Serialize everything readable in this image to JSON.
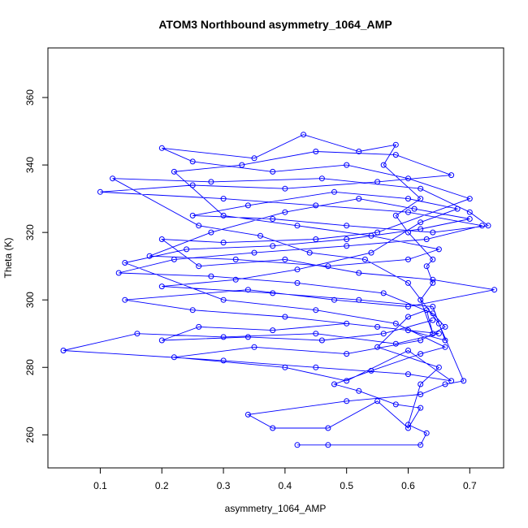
{
  "chart_data": {
    "type": "scatter",
    "title": "ATOM3 Northbound asymmetry_1064_AMP",
    "xlabel": "asymmetry_1064_AMP",
    "ylabel": "Theta (K)",
    "xlim": [
      0.015,
      0.755
    ],
    "ylim": [
      250.2,
      374.7
    ],
    "xticks": [
      "0.1",
      "0.2",
      "0.3",
      "0.4",
      "0.5",
      "0.6",
      "0.7"
    ],
    "yticks": [
      "260",
      "280",
      "300",
      "320",
      "340",
      "360"
    ],
    "grid": false,
    "marker": "open-circle",
    "connected": true,
    "series": [
      {
        "color": "#0000ff",
        "points": [
          [
            0.42,
            257.0
          ],
          [
            0.47,
            257.0
          ],
          [
            0.62,
            257.0
          ],
          [
            0.63,
            260.5
          ],
          [
            0.6,
            263.0
          ],
          [
            0.62,
            275.0
          ],
          [
            0.65,
            280.0
          ],
          [
            0.55,
            286.0
          ],
          [
            0.6,
            295.0
          ],
          [
            0.63,
            297.0
          ],
          [
            0.64,
            290.0
          ],
          [
            0.62,
            300.0
          ],
          [
            0.64,
            305.0
          ],
          [
            0.63,
            310.0
          ],
          [
            0.64,
            312.0
          ],
          [
            0.6,
            320.0
          ],
          [
            0.58,
            325.0
          ],
          [
            0.62,
            330.0
          ],
          [
            0.56,
            340.0
          ],
          [
            0.58,
            346.0
          ],
          [
            0.52,
            344.0
          ],
          [
            0.43,
            349.0
          ],
          [
            0.35,
            342.0
          ],
          [
            0.2,
            345.0
          ],
          [
            0.25,
            341.0
          ],
          [
            0.38,
            338.0
          ],
          [
            0.5,
            340.0
          ],
          [
            0.6,
            336.0
          ],
          [
            0.7,
            330.0
          ],
          [
            0.55,
            320.0
          ],
          [
            0.45,
            318.0
          ],
          [
            0.3,
            317.0
          ],
          [
            0.2,
            318.0
          ],
          [
            0.26,
            310.0
          ],
          [
            0.4,
            312.0
          ],
          [
            0.52,
            308.0
          ],
          [
            0.64,
            306.0
          ],
          [
            0.74,
            303.0
          ],
          [
            0.6,
            298.0
          ],
          [
            0.48,
            300.0
          ],
          [
            0.34,
            303.0
          ],
          [
            0.14,
            300.0
          ],
          [
            0.25,
            297.0
          ],
          [
            0.4,
            295.0
          ],
          [
            0.55,
            292.0
          ],
          [
            0.65,
            290.0
          ],
          [
            0.58,
            287.0
          ],
          [
            0.45,
            290.0
          ],
          [
            0.3,
            289.0
          ],
          [
            0.16,
            290.0
          ],
          [
            0.04,
            285.0
          ],
          [
            0.3,
            282.0
          ],
          [
            0.45,
            280.0
          ],
          [
            0.6,
            278.0
          ],
          [
            0.67,
            276.0
          ],
          [
            0.6,
            285.0
          ],
          [
            0.5,
            276.0
          ],
          [
            0.4,
            280.0
          ],
          [
            0.22,
            283.0
          ],
          [
            0.35,
            286.0
          ],
          [
            0.5,
            284.0
          ],
          [
            0.62,
            288.0
          ],
          [
            0.66,
            292.0
          ],
          [
            0.64,
            296.0
          ],
          [
            0.56,
            302.0
          ],
          [
            0.42,
            305.0
          ],
          [
            0.28,
            307.0
          ],
          [
            0.13,
            308.0
          ],
          [
            0.22,
            312.0
          ],
          [
            0.35,
            314.0
          ],
          [
            0.5,
            316.0
          ],
          [
            0.63,
            318.0
          ],
          [
            0.72,
            322.0
          ],
          [
            0.6,
            326.0
          ],
          [
            0.45,
            328.0
          ],
          [
            0.3,
            330.0
          ],
          [
            0.1,
            332.0
          ],
          [
            0.25,
            334.0
          ],
          [
            0.4,
            333.0
          ],
          [
            0.55,
            335.0
          ],
          [
            0.67,
            337.0
          ],
          [
            0.58,
            343.0
          ],
          [
            0.45,
            344.0
          ],
          [
            0.33,
            340.0
          ],
          [
            0.22,
            338.0
          ],
          [
            0.3,
            325.0
          ],
          [
            0.42,
            322.0
          ],
          [
            0.54,
            319.0
          ],
          [
            0.65,
            315.0
          ],
          [
            0.6,
            312.0
          ],
          [
            0.47,
            310.0
          ],
          [
            0.32,
            312.0
          ],
          [
            0.18,
            313.0
          ],
          [
            0.28,
            320.0
          ],
          [
            0.4,
            326.0
          ],
          [
            0.52,
            330.0
          ],
          [
            0.61,
            327.0
          ],
          [
            0.7,
            324.0
          ],
          [
            0.62,
            321.0
          ],
          [
            0.5,
            318.0
          ],
          [
            0.38,
            316.0
          ],
          [
            0.24,
            315.0
          ],
          [
            0.14,
            311.0
          ],
          [
            0.3,
            300.0
          ],
          [
            0.45,
            297.0
          ],
          [
            0.58,
            293.0
          ],
          [
            0.66,
            286.0
          ],
          [
            0.62,
            284.0
          ],
          [
            0.54,
            279.0
          ],
          [
            0.48,
            275.0
          ],
          [
            0.52,
            273.0
          ],
          [
            0.58,
            269.0
          ],
          [
            0.62,
            268.0
          ],
          [
            0.6,
            262.0
          ],
          [
            0.55,
            270.0
          ],
          [
            0.47,
            262.0
          ],
          [
            0.38,
            262.0
          ],
          [
            0.34,
            266.0
          ],
          [
            0.5,
            270.0
          ],
          [
            0.62,
            272.0
          ],
          [
            0.66,
            275.0
          ],
          [
            0.69,
            276.0
          ],
          [
            0.65,
            293.0
          ],
          [
            0.6,
            305.0
          ],
          [
            0.53,
            312.0
          ],
          [
            0.44,
            314.0
          ],
          [
            0.36,
            319.0
          ],
          [
            0.26,
            322.0
          ],
          [
            0.12,
            336.0
          ],
          [
            0.28,
            335.0
          ],
          [
            0.46,
            336.0
          ],
          [
            0.62,
            333.0
          ],
          [
            0.7,
            326.0
          ],
          [
            0.73,
            322.0
          ],
          [
            0.64,
            320.0
          ],
          [
            0.5,
            322.0
          ],
          [
            0.38,
            324.0
          ],
          [
            0.25,
            325.0
          ],
          [
            0.34,
            328.0
          ],
          [
            0.48,
            332.0
          ],
          [
            0.6,
            330.0
          ],
          [
            0.68,
            327.0
          ],
          [
            0.62,
            323.0
          ],
          [
            0.54,
            314.0
          ],
          [
            0.42,
            309.0
          ],
          [
            0.32,
            306.0
          ],
          [
            0.2,
            304.0
          ],
          [
            0.38,
            302.0
          ],
          [
            0.52,
            300.0
          ],
          [
            0.64,
            298.0
          ],
          [
            0.66,
            288.0
          ],
          [
            0.6,
            291.0
          ],
          [
            0.5,
            293.0
          ],
          [
            0.38,
            291.0
          ],
          [
            0.26,
            292.0
          ],
          [
            0.2,
            288.0
          ],
          [
            0.34,
            289.0
          ],
          [
            0.46,
            288.0
          ],
          [
            0.56,
            290.0
          ],
          [
            0.64,
            294.0
          ]
        ]
      }
    ]
  }
}
